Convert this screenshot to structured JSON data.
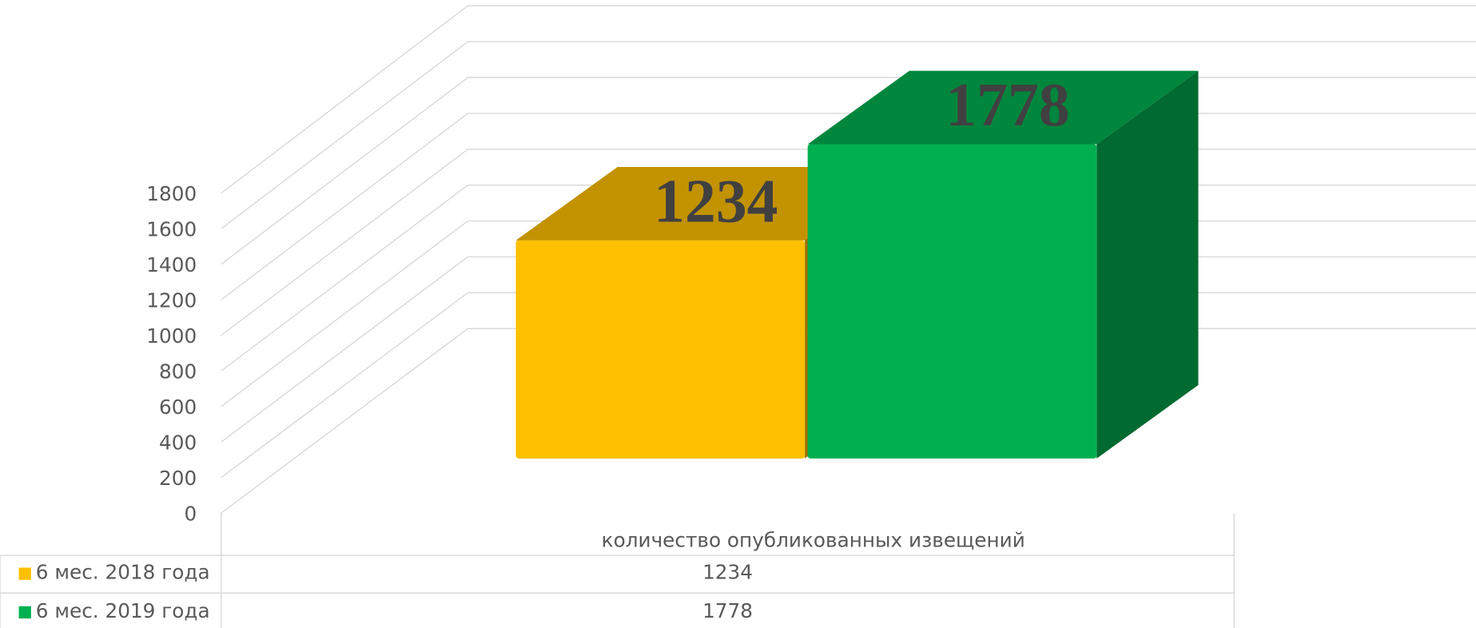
{
  "chart_data": {
    "type": "bar",
    "categories": [
      "количество опубликованных извещений"
    ],
    "series": [
      {
        "name": "6 мес. 2018 года",
        "color": "#ffc000",
        "values": [
          1234
        ]
      },
      {
        "name": "6 мес. 2019 года",
        "color": "#00b050",
        "values": [
          1778
        ]
      }
    ],
    "ylim": [
      0,
      1800
    ],
    "yticks": [
      0,
      200,
      400,
      600,
      800,
      1000,
      1200,
      1400,
      1600,
      1800
    ],
    "grid": true
  }
}
